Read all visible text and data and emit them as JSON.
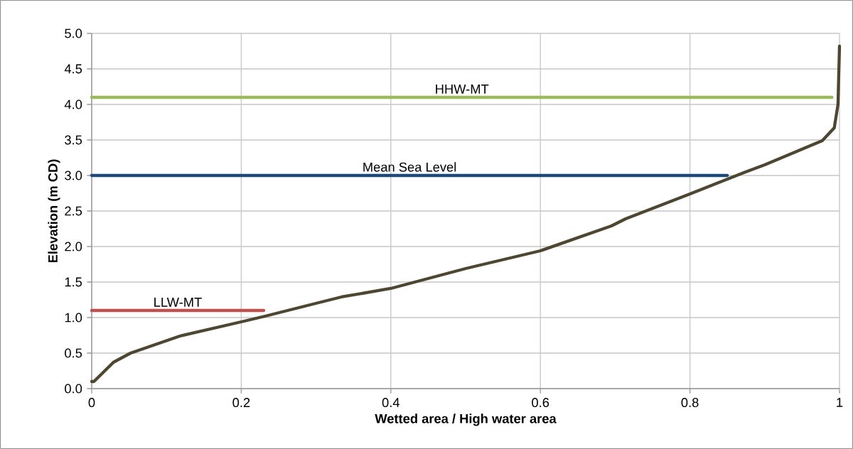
{
  "chart_data": {
    "type": "line",
    "xlabel": "Wetted area / High water area",
    "ylabel": "Elevation (m CD)",
    "xlim": [
      0,
      1
    ],
    "ylim": [
      0,
      5
    ],
    "xticks": [
      0,
      0.2,
      0.4,
      0.6,
      0.8,
      1
    ],
    "yticks": [
      {
        "value": 0,
        "label": "0.0"
      },
      {
        "value": 0.5,
        "label": "0.5"
      },
      {
        "value": 1,
        "label": "1.0"
      },
      {
        "value": 1.5,
        "label": "1.5"
      },
      {
        "value": 2,
        "label": "2.0"
      },
      {
        "value": 2.5,
        "label": "2.5"
      },
      {
        "value": 3,
        "label": "3.0"
      },
      {
        "value": 3.5,
        "label": "3.5"
      },
      {
        "value": 4,
        "label": "4.0"
      },
      {
        "value": 4.5,
        "label": "4.5"
      },
      {
        "value": 5,
        "label": "5.0"
      }
    ],
    "grid": true,
    "series": [
      {
        "color": "#4d4630",
        "x": [
          0,
          0.003,
          0.029,
          0.052,
          0.118,
          0.2,
          0.232,
          0.296,
          0.334,
          0.4,
          0.5,
          0.6,
          0.695,
          0.714,
          0.8,
          0.872,
          0.9,
          0.977,
          0.993,
          0.998,
          1.0
        ],
        "values": [
          0.1,
          0.1,
          0.37,
          0.5,
          0.74,
          0.94,
          1.02,
          1.19,
          1.29,
          1.41,
          1.69,
          1.94,
          2.29,
          2.39,
          2.74,
          3.04,
          3.15,
          3.49,
          3.67,
          4.0,
          4.82
        ]
      },
      {
        "name": "HHW-MT",
        "color": "#9bbb59",
        "x": [
          0,
          0.99
        ],
        "values": [
          4.1,
          4.1
        ]
      },
      {
        "name": "Mean Sea Level",
        "color": "#1f497d",
        "x": [
          0,
          0.85
        ],
        "values": [
          3.0,
          3.0
        ]
      },
      {
        "name": "LLW-MT",
        "color": "#c0504d",
        "x": [
          0,
          0.23
        ],
        "values": [
          1.1,
          1.1
        ]
      }
    ]
  }
}
